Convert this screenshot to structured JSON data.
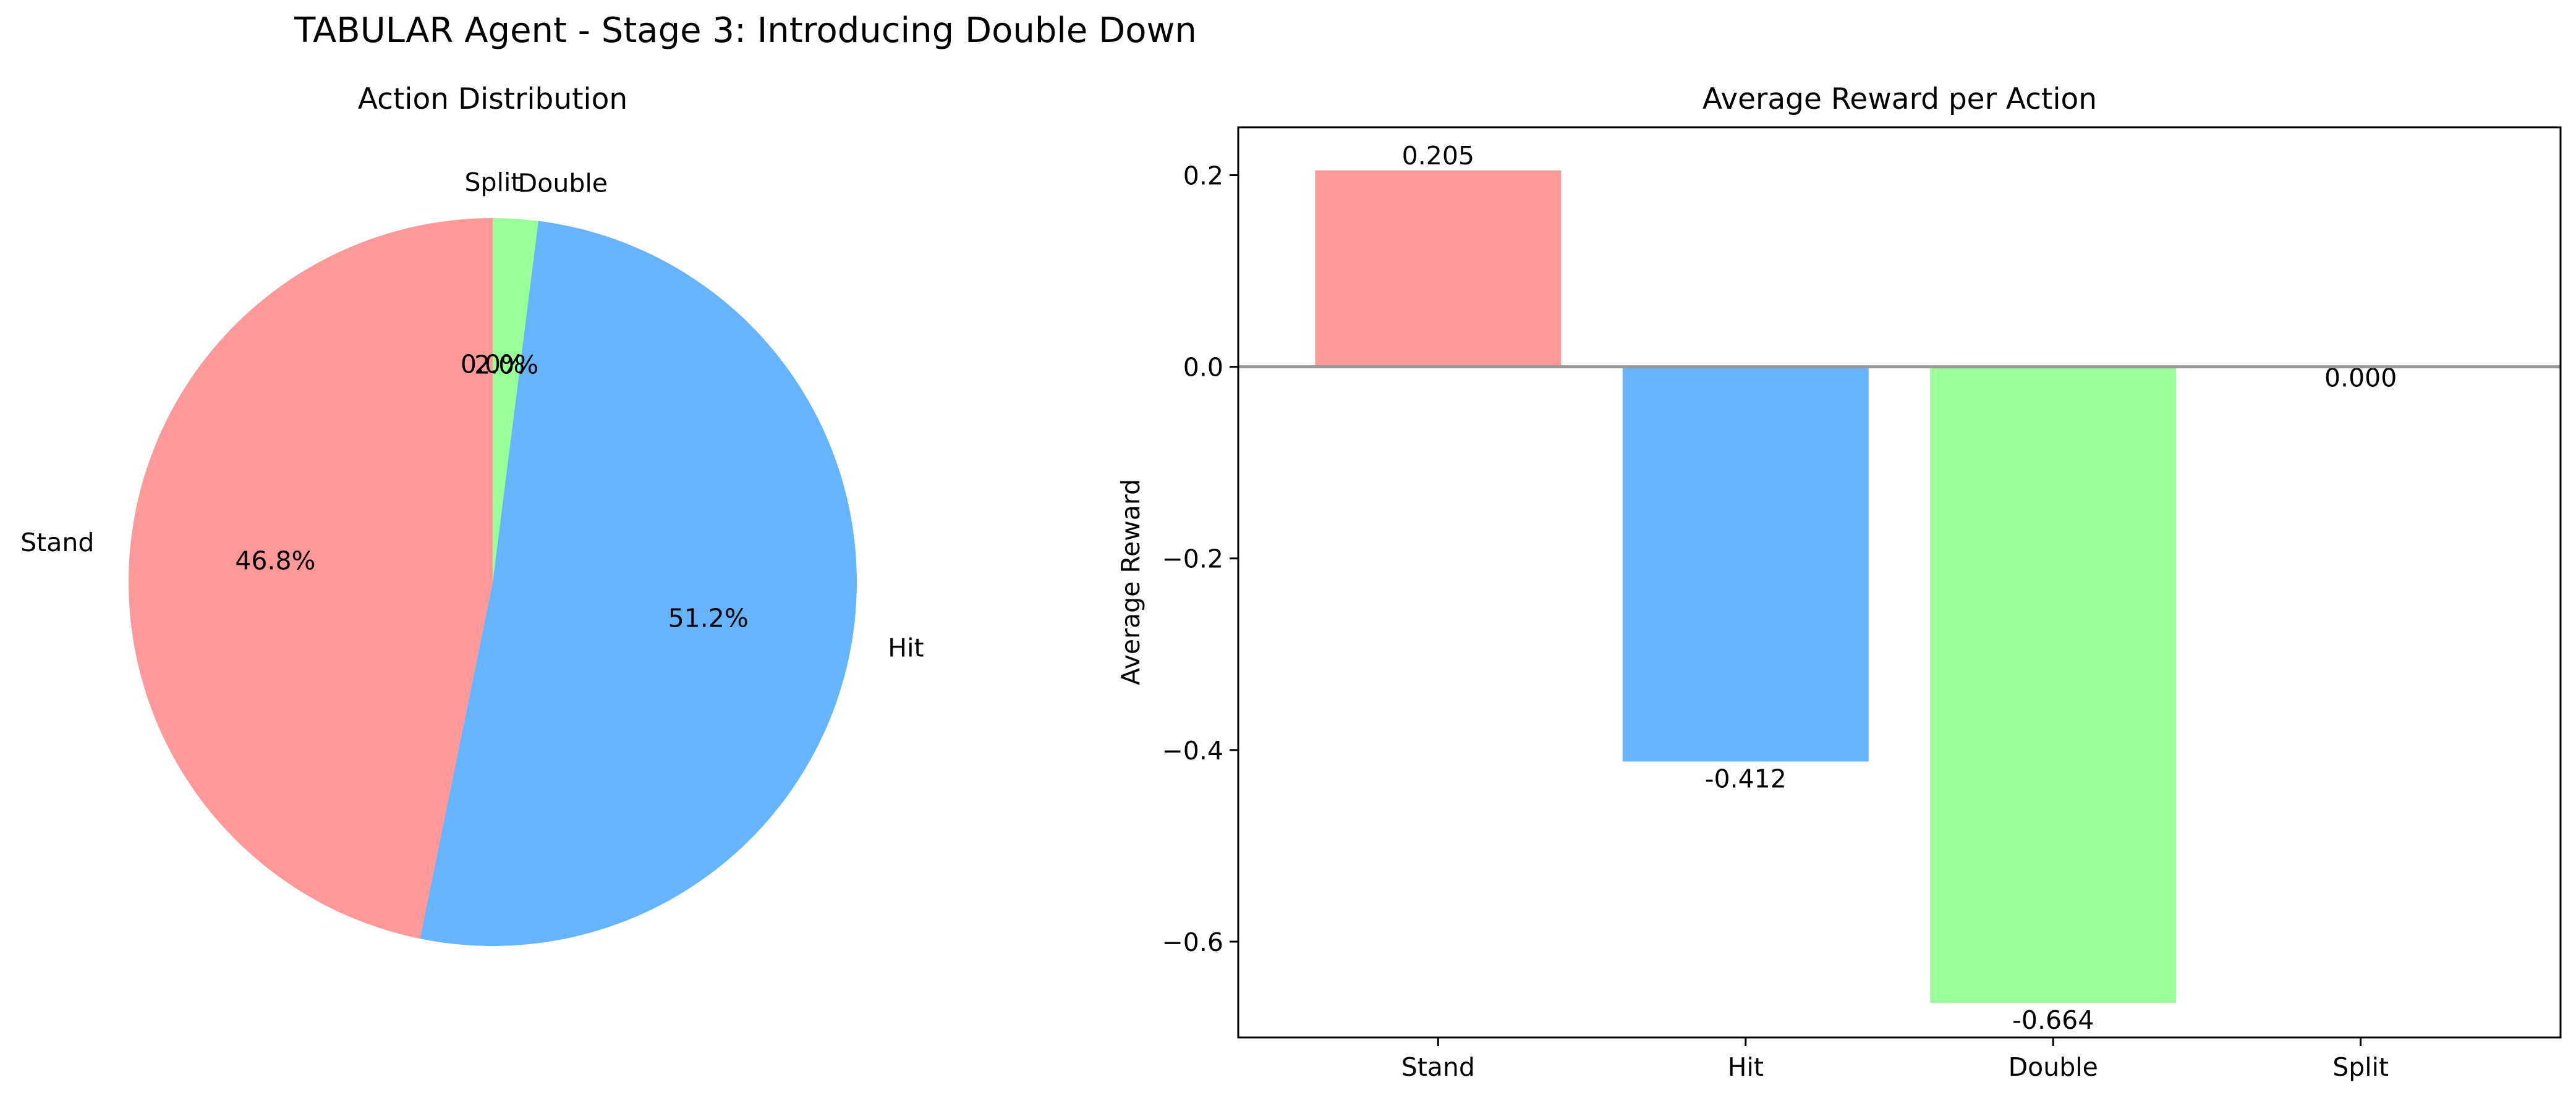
{
  "figure": {
    "suptitle": "TABULAR Agent - Stage 3: Introducing Double Down"
  },
  "chart_data": [
    {
      "type": "pie",
      "title": "Action Distribution",
      "categories": [
        "Stand",
        "Hit",
        "Double",
        "Split"
      ],
      "values": [
        46.8,
        51.2,
        2.0,
        0.0
      ],
      "pct_labels": [
        "46.8%",
        "51.2%",
        "2.0%",
        "0.0%"
      ],
      "colors": [
        "#ff9999",
        "#66b3ff",
        "#99ff99",
        "#ffcc99"
      ],
      "start_angle_deg": 90,
      "direction": "counterclockwise"
    },
    {
      "type": "bar",
      "title": "Average Reward per Action",
      "categories": [
        "Stand",
        "Hit",
        "Double",
        "Split"
      ],
      "values": [
        0.205,
        -0.412,
        -0.664,
        0.0
      ],
      "value_labels": [
        "0.205",
        "-0.412",
        "-0.664",
        "0.000"
      ],
      "colors": [
        "#ff9999",
        "#66b3ff",
        "#99ff99",
        "#ffcc99"
      ],
      "xlabel": "",
      "ylabel": "Average Reward",
      "ylim": [
        -0.7,
        0.25
      ],
      "yticks": [
        0.2,
        0.0,
        -0.2,
        -0.4,
        -0.6
      ],
      "ytick_labels": [
        "0.2",
        "0.0",
        "−0.2",
        "−0.4",
        "−0.6"
      ],
      "zero_line_color": "#999999",
      "grid": false
    }
  ]
}
